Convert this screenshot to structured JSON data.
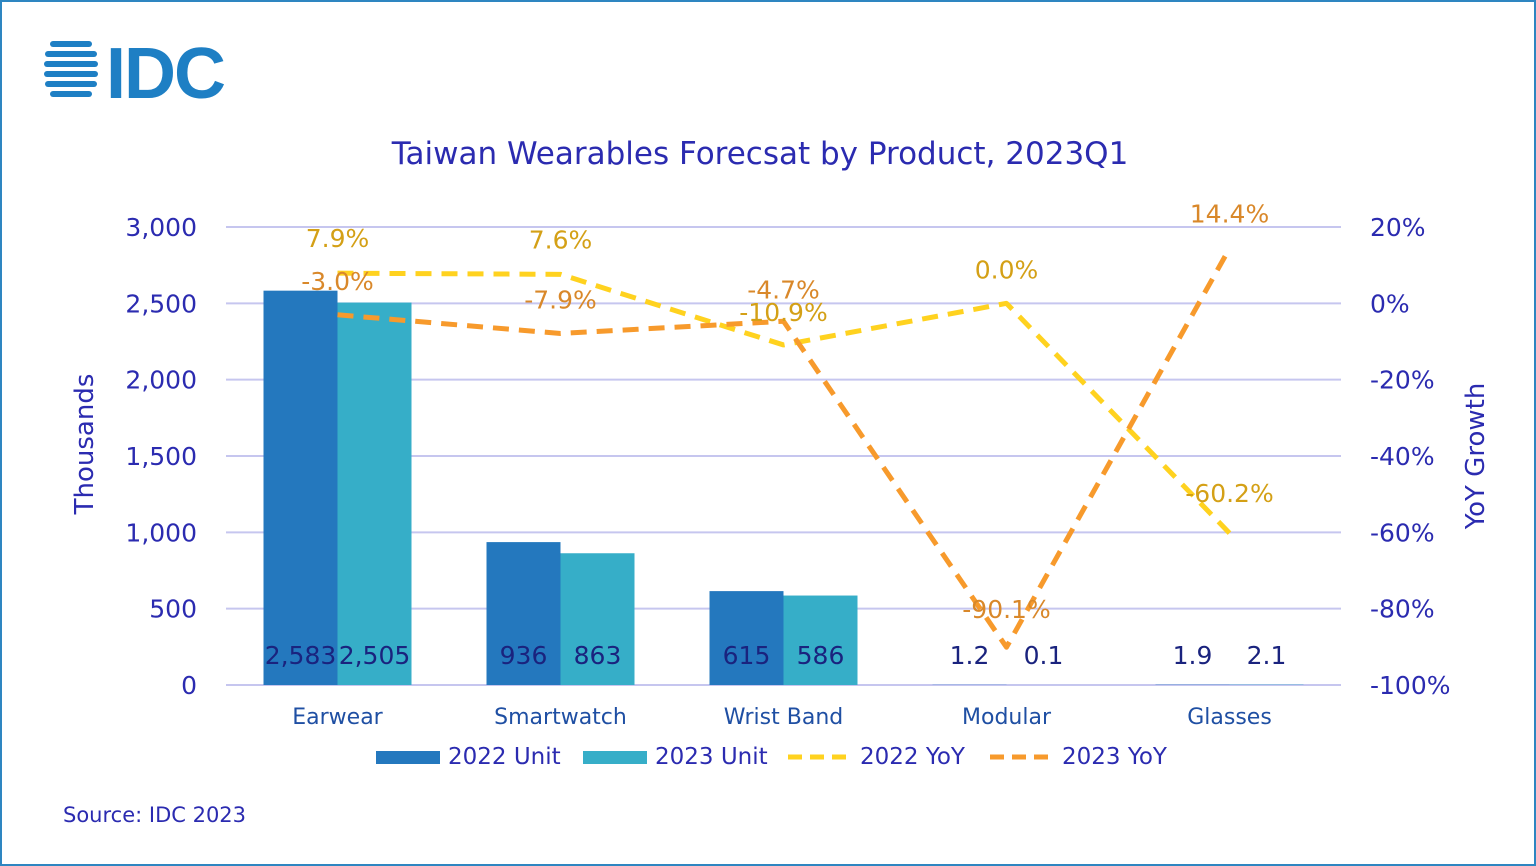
{
  "brand": {
    "logo_text": "IDC",
    "logo_color": "#1e7fc4"
  },
  "source": "Source: IDC 2023",
  "colors": {
    "unit2022": "#2478be",
    "unit2023": "#36aec8",
    "yoy2022": "#ffd21f",
    "yoy2023": "#f79a2c",
    "yoy2022_label": "#d4a016",
    "yoy2023_label": "#d9882a",
    "grid": "#c6c6ef",
    "axis_text": "#2b2bb0",
    "title": "#2b2bb0",
    "category_text": "#1f4fa3"
  },
  "chart_data": {
    "type": "bar",
    "title": "Taiwan Wearables Forecsat by Product, 2023Q1",
    "categories": [
      "Earwear",
      "Smartwatch",
      "Wrist Band",
      "Modular",
      "Glasses"
    ],
    "ylabel": "Thousands",
    "y2label": "YoY Growth",
    "ylim": [
      0,
      3000
    ],
    "y2lim": [
      -100,
      20
    ],
    "yticks": [
      "0",
      "500",
      "1,000",
      "1,500",
      "2,000",
      "2,500",
      "3,000"
    ],
    "y2ticks": [
      "-100%",
      "-80%",
      "-60%",
      "-40%",
      "-20%",
      "0%",
      "20%"
    ],
    "grid": true,
    "legend_position": "bottom",
    "series": [
      {
        "name": "2022 Unit",
        "kind": "bar",
        "axis": "left",
        "values": [
          2583,
          936,
          615,
          1.2,
          1.9
        ],
        "labels": [
          "2,583",
          "936",
          "615",
          "1.2",
          "1.9"
        ]
      },
      {
        "name": "2023 Unit",
        "kind": "bar",
        "axis": "left",
        "values": [
          2505,
          863,
          586,
          0.1,
          2.1
        ],
        "labels": [
          "2,505",
          "863",
          "586",
          "0.1",
          "2.1"
        ]
      },
      {
        "name": "2022 YoY",
        "kind": "line",
        "style": "dashed",
        "axis": "right",
        "values": [
          7.9,
          7.6,
          -10.9,
          0.0,
          -60.2
        ],
        "labels": [
          "7.9%",
          "7.6%",
          "-10.9%",
          "0.0%",
          "-60.2%"
        ]
      },
      {
        "name": "2023 YoY",
        "kind": "line",
        "style": "dashed",
        "axis": "right",
        "values": [
          -3.0,
          -7.9,
          -4.7,
          -90.1,
          14.4
        ],
        "labels": [
          "-3.0%",
          "-7.9%",
          "-4.7%",
          "-90.1%",
          "14.4%"
        ]
      }
    ]
  }
}
